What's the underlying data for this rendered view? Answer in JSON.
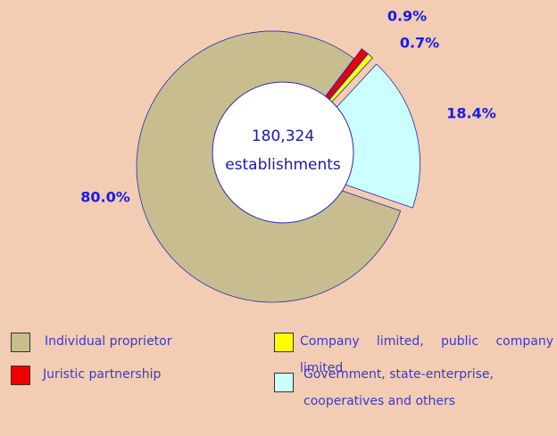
{
  "chart_data": {
    "type": "pie",
    "center_text": [
      "180,324",
      "establishments"
    ],
    "categories": [
      "Individual proprietor",
      "Juristic partnership",
      "Company limited, public company limited",
      "Government, state-enterprise, cooperatives and others"
    ],
    "values": [
      80.0,
      0.9,
      0.7,
      18.4
    ],
    "value_labels": [
      "80.0%",
      "0.9%",
      "0.7%",
      "18.4%"
    ],
    "colors": [
      "#c8bd8f",
      "#ee0000",
      "#ffff00",
      "#ccffff"
    ]
  }
}
